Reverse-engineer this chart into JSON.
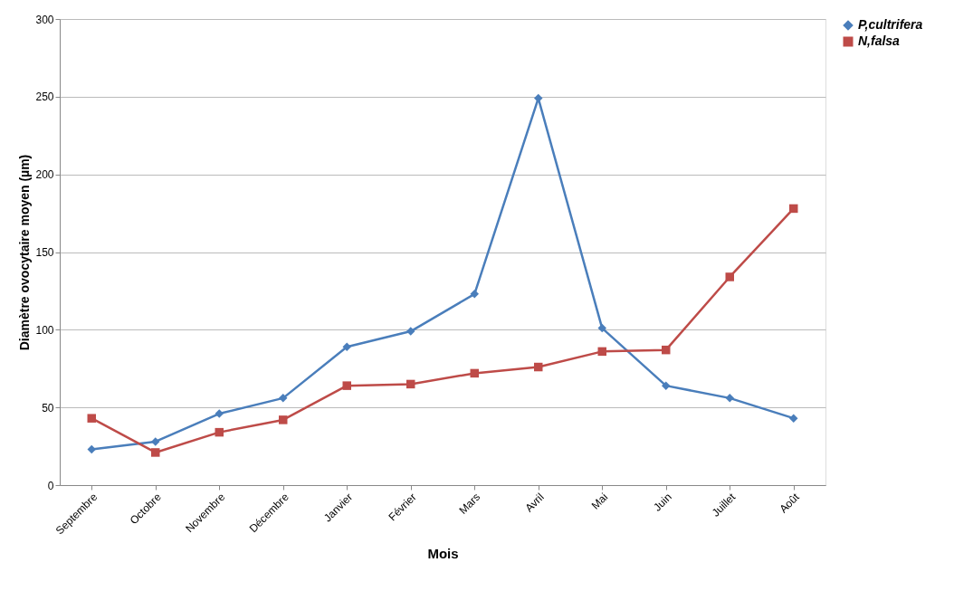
{
  "chart_data": {
    "type": "line",
    "xlabel": "Mois",
    "ylabel": "Diamètre ovocytaire moyen (µm)",
    "categories": [
      "Septembre",
      "Octobre",
      "Novembre",
      "Décembre",
      "Janvier",
      "Février",
      "Mars",
      "Avril",
      "Mai",
      "Juin",
      "Juillet",
      "Août"
    ],
    "series": [
      {
        "name": "P,cultrifera",
        "color": "#4a7ebb",
        "marker": "diamond",
        "values": [
          23,
          28,
          46,
          56,
          89,
          99,
          123,
          249,
          101,
          64,
          56,
          43
        ]
      },
      {
        "name": "N,falsa",
        "color": "#be4b48",
        "marker": "square",
        "values": [
          43,
          21,
          34,
          42,
          64,
          65,
          72,
          76,
          86,
          87,
          134,
          178
        ]
      }
    ],
    "ylim": [
      0,
      300
    ],
    "yticks": [
      0,
      50,
      100,
      150,
      200,
      250,
      300
    ],
    "grid": "y",
    "legend": "right",
    "line_style": "solid"
  }
}
